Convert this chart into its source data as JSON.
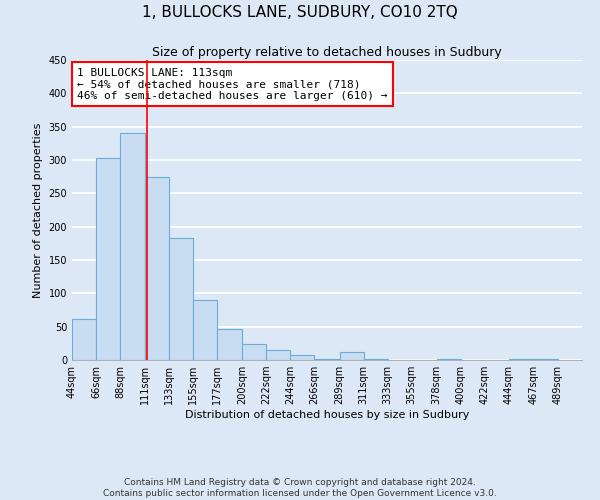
{
  "title": "1, BULLOCKS LANE, SUDBURY, CO10 2TQ",
  "subtitle": "Size of property relative to detached houses in Sudbury",
  "xlabel": "Distribution of detached houses by size in Sudbury",
  "ylabel": "Number of detached properties",
  "bar_left_edges": [
    44,
    66,
    88,
    111,
    133,
    155,
    177,
    200,
    222,
    244,
    266,
    289,
    311,
    333,
    355,
    378,
    400,
    422,
    444,
    467
  ],
  "bar_heights": [
    62,
    303,
    340,
    275,
    183,
    90,
    46,
    24,
    15,
    7,
    2,
    12,
    2,
    0,
    0,
    2,
    0,
    0,
    2,
    2
  ],
  "bar_widths": [
    22,
    22,
    23,
    22,
    22,
    22,
    23,
    22,
    22,
    22,
    23,
    22,
    22,
    22,
    23,
    22,
    22,
    22,
    23,
    22
  ],
  "tick_labels": [
    "44sqm",
    "66sqm",
    "88sqm",
    "111sqm",
    "133sqm",
    "155sqm",
    "177sqm",
    "200sqm",
    "222sqm",
    "244sqm",
    "266sqm",
    "289sqm",
    "311sqm",
    "333sqm",
    "355sqm",
    "378sqm",
    "400sqm",
    "422sqm",
    "444sqm",
    "467sqm",
    "489sqm"
  ],
  "tick_positions": [
    44,
    66,
    88,
    111,
    133,
    155,
    177,
    200,
    222,
    244,
    266,
    289,
    311,
    333,
    355,
    378,
    400,
    422,
    444,
    467,
    489
  ],
  "bar_color": "#c9ddf2",
  "bar_edge_color": "#6aaed6",
  "ylim": [
    0,
    450
  ],
  "yticks": [
    0,
    50,
    100,
    150,
    200,
    250,
    300,
    350,
    400,
    450
  ],
  "red_line_x": 113,
  "annotation_text": "1 BULLOCKS LANE: 113sqm\n← 54% of detached houses are smaller (718)\n46% of semi-detached houses are larger (610) →",
  "annotation_box_color": "white",
  "annotation_box_edge_color": "red",
  "footer_line1": "Contains HM Land Registry data © Crown copyright and database right 2024.",
  "footer_line2": "Contains public sector information licensed under the Open Government Licence v3.0.",
  "background_color": "#dce8f5",
  "axes_background_color": "#dce8f5",
  "grid_color": "white",
  "title_fontsize": 11,
  "subtitle_fontsize": 9,
  "axis_label_fontsize": 8,
  "tick_fontsize": 7,
  "annotation_fontsize": 8,
  "footer_fontsize": 6.5
}
